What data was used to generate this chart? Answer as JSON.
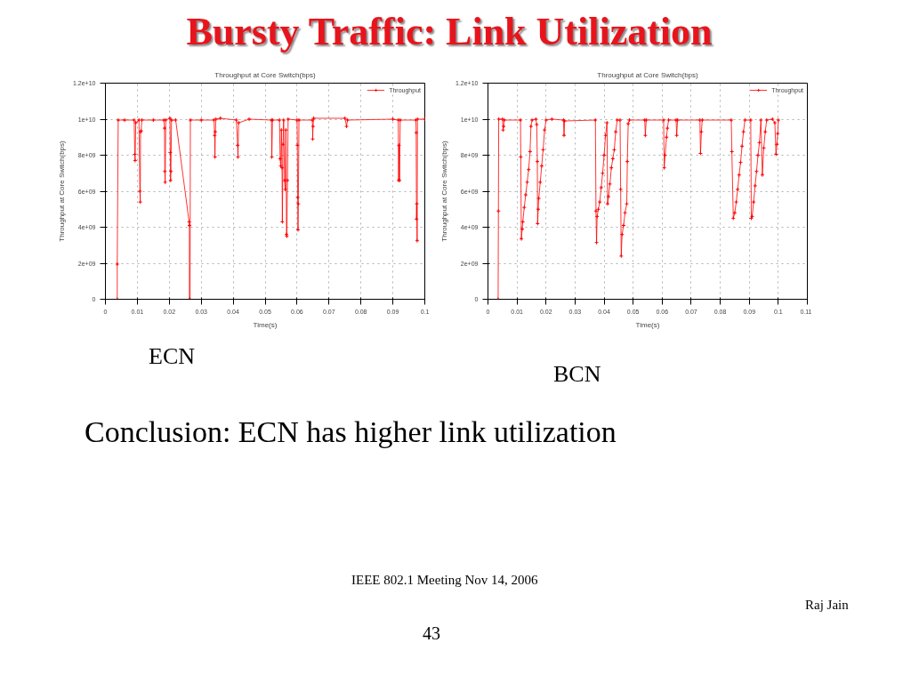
{
  "chart_data": [
    {
      "type": "other",
      "title": "Bursty Traffic: Link Utilization",
      "annotations": [
        "Conclusion: ECN has higher link utilization",
        "IEEE 802.1 Meeting  Nov 14, 2006",
        "Raj Jain",
        "43"
      ]
    },
    {
      "type": "line",
      "title": "Throughput at Core Switch(bps)",
      "xlabel": "Time(s)",
      "ylabel": "Throughput at Core Switch(bps)",
      "annotations": [
        "ECN"
      ],
      "xlim": [
        0,
        0.1
      ],
      "xticks": [
        0,
        0.01,
        0.02,
        0.03,
        0.04,
        0.05,
        0.06,
        0.07,
        0.08,
        0.09,
        0.1
      ],
      "ylim": [
        0,
        12000000000.0
      ],
      "yticks": [
        0,
        {
          "value": 2000000000.0,
          "label": "2e+09"
        },
        {
          "value": 4000000000.0,
          "label": "4e+09"
        },
        {
          "value": 6000000000.0,
          "label": "6e+09"
        },
        {
          "value": 8000000000.0,
          "label": "8e+09"
        },
        {
          "value": 10000000000.0,
          "label": "1e+10"
        },
        {
          "value": 12000000000.0,
          "label": "1.2e+10"
        }
      ],
      "grid": true,
      "legend": "top right",
      "marker": "cross",
      "line_style": "solid",
      "series": [
        {
          "name": "Throughput",
          "color": "#ff0000",
          "x": [
            0.0037,
            0.0037,
            0.004,
            0.006,
            0.009,
            0.0092,
            0.0093,
            0.0095,
            0.0105,
            0.0108,
            0.0109,
            0.011,
            0.0112,
            0.0114,
            0.015,
            0.0183,
            0.0185,
            0.0186,
            0.0187,
            0.0189,
            0.0202,
            0.0203,
            0.0204,
            0.0205,
            0.0207,
            0.022,
            0.0262,
            0.0263,
            0.0263,
            0.0265,
            0.0266,
            0.03,
            0.034,
            0.0342,
            0.0343,
            0.0344,
            0.0346,
            0.036,
            0.041,
            0.0414,
            0.0415,
            0.0417,
            0.045,
            0.052,
            0.0521,
            0.0523,
            0.0545,
            0.0547,
            0.0549,
            0.0551,
            0.0553,
            0.0554,
            0.0556,
            0.0558,
            0.0561,
            0.0563,
            0.0565,
            0.0567,
            0.0568,
            0.057,
            0.0572,
            0.06,
            0.0601,
            0.0602,
            0.0603,
            0.0604,
            0.0606,
            0.0648,
            0.0649,
            0.065,
            0.0652,
            0.075,
            0.0755,
            0.0758,
            0.09,
            0.0917,
            0.0918,
            0.0919,
            0.0921,
            0.0923,
            0.0972,
            0.0973,
            0.0974,
            0.0975,
            0.0976,
            0.0977,
            0.1
          ],
          "values": [
            0,
            1950000000.0,
            9950000000.0,
            9950000000.0,
            9950000000.0,
            8050000000.0,
            7700000000.0,
            9800000000.0,
            9950000000.0,
            6000000000.0,
            5400000000.0,
            9300000000.0,
            9350000000.0,
            9950000000.0,
            9950000000.0,
            9950000000.0,
            9500000000.0,
            7100000000.0,
            6500000000.0,
            9950000000.0,
            10050000000.0,
            8150000000.0,
            6600000000.0,
            7100000000.0,
            9950000000.0,
            9950000000.0,
            4300000000.0,
            4100000000.0,
            0,
            0,
            9950000000.0,
            9950000000.0,
            9950000000.0,
            9100000000.0,
            7900000000.0,
            9300000000.0,
            10000000000.0,
            10050000000.0,
            9950000000.0,
            8550000000.0,
            7900000000.0,
            9800000000.0,
            10000000000.0,
            9950000000.0,
            7900000000.0,
            9950000000.0,
            9950000000.0,
            7800000000.0,
            7400000000.0,
            9400000000.0,
            7300000000.0,
            4300000000.0,
            8600000000.0,
            9950000000.0,
            6600000000.0,
            6100000000.0,
            9400000000.0,
            3600000000.0,
            3500000000.0,
            6600000000.0,
            10000000000.0,
            9950000000.0,
            8550000000.0,
            5650000000.0,
            3850000000.0,
            5300000000.0,
            9950000000.0,
            9950000000.0,
            8900000000.0,
            9600000000.0,
            10050000000.0,
            10050000000.0,
            9600000000.0,
            9950000000.0,
            10000000000.0,
            9950000000.0,
            6600000000.0,
            8550000000.0,
            6600000000.0,
            9950000000.0,
            9950000000.0,
            9250000000.0,
            4450000000.0,
            5300000000.0,
            3250000000.0,
            10000000000.0,
            10000000000.0
          ]
        }
      ]
    },
    {
      "type": "line",
      "title": "Throughput at Core Switch(bps)",
      "xlabel": "Time(s)",
      "ylabel": "Throughput at Core Switch(bps)",
      "annotations": [
        "BCN"
      ],
      "xlim": [
        0,
        0.11
      ],
      "xticks": [
        0,
        0.01,
        0.02,
        0.03,
        0.04,
        0.05,
        0.06,
        0.07,
        0.08,
        0.09,
        0.1,
        0.11
      ],
      "ylim": [
        0,
        12000000000.0
      ],
      "yticks": [
        0,
        {
          "value": 2000000000.0,
          "label": "2e+09"
        },
        {
          "value": 4000000000.0,
          "label": "4e+09"
        },
        {
          "value": 6000000000.0,
          "label": "6e+09"
        },
        {
          "value": 8000000000.0,
          "label": "8e+09"
        },
        {
          "value": 10000000000.0,
          "label": "1e+10"
        },
        {
          "value": 12000000000.0,
          "label": "1.2e+10"
        }
      ],
      "grid": true,
      "legend": "top right",
      "marker": "cross",
      "line_style": "solid",
      "series": [
        {
          "name": "Throughput",
          "color": "#ff0000",
          "x": [
            0.0035,
            0.0036,
            0.0037,
            0.005,
            0.0052,
            0.0054,
            0.0056,
            0.0112,
            0.0113,
            0.0115,
            0.0118,
            0.012,
            0.0125,
            0.013,
            0.0135,
            0.014,
            0.0145,
            0.0148,
            0.0152,
            0.0165,
            0.0168,
            0.017,
            0.0171,
            0.0173,
            0.0175,
            0.018,
            0.0185,
            0.019,
            0.0195,
            0.02,
            0.022,
            0.026,
            0.0262,
            0.0264,
            0.037,
            0.0372,
            0.0374,
            0.0376,
            0.038,
            0.0385,
            0.039,
            0.0395,
            0.04,
            0.0405,
            0.041,
            0.0412,
            0.0415,
            0.042,
            0.0425,
            0.043,
            0.0435,
            0.044,
            0.0445,
            0.0455,
            0.0457,
            0.0459,
            0.0462,
            0.0467,
            0.0472,
            0.0478,
            0.048,
            0.0483,
            0.0487,
            0.054,
            0.0542,
            0.0545,
            0.0605,
            0.0607,
            0.061,
            0.0615,
            0.0618,
            0.0622,
            0.0648,
            0.065,
            0.0653,
            0.073,
            0.0732,
            0.0735,
            0.0738,
            0.0838,
            0.084,
            0.0845,
            0.085,
            0.0855,
            0.086,
            0.0865,
            0.087,
            0.0875,
            0.088,
            0.0885,
            0.0905,
            0.0907,
            0.091,
            0.0915,
            0.092,
            0.0925,
            0.093,
            0.0935,
            0.094,
            0.0945,
            0.095,
            0.0955,
            0.096,
            0.098,
            0.0988,
            0.0992,
            0.0995,
            0.0998,
            0.1
          ],
          "values": [
            0,
            4900000000.0,
            10000000000.0,
            10000000000.0,
            9400000000.0,
            9600000000.0,
            9950000000.0,
            9950000000.0,
            7900000000.0,
            3350000000.0,
            3900000000.0,
            4300000000.0,
            5100000000.0,
            5800000000.0,
            6500000000.0,
            7200000000.0,
            8200000000.0,
            9600000000.0,
            9950000000.0,
            10000000000.0,
            9700000000.0,
            7650000000.0,
            4200000000.0,
            5000000000.0,
            5600000000.0,
            6500000000.0,
            7400000000.0,
            8300000000.0,
            9400000000.0,
            9950000000.0,
            10000000000.0,
            9950000000.0,
            9100000000.0,
            9900000000.0,
            9950000000.0,
            4900000000.0,
            3150000000.0,
            4600000000.0,
            5000000000.0,
            5400000000.0,
            6200000000.0,
            7000000000.0,
            8000000000.0,
            9100000000.0,
            9800000000.0,
            5300000000.0,
            5700000000.0,
            6400000000.0,
            7300000000.0,
            7800000000.0,
            8300000000.0,
            9300000000.0,
            9950000000.0,
            9950000000.0,
            6100000000.0,
            2400000000.0,
            3600000000.0,
            4100000000.0,
            4800000000.0,
            5300000000.0,
            7650000000.0,
            9750000000.0,
            9950000000.0,
            9950000000.0,
            9100000000.0,
            9950000000.0,
            9950000000.0,
            7300000000.0,
            8000000000.0,
            9000000000.0,
            9500000000.0,
            9950000000.0,
            9950000000.0,
            9100000000.0,
            9950000000.0,
            9950000000.0,
            8100000000.0,
            9300000000.0,
            9950000000.0,
            9950000000.0,
            8200000000.0,
            4500000000.0,
            4800000000.0,
            5400000000.0,
            6100000000.0,
            6900000000.0,
            7600000000.0,
            8500000000.0,
            9300000000.0,
            9950000000.0,
            9950000000.0,
            4500000000.0,
            4600000000.0,
            5400000000.0,
            6300000000.0,
            7100000000.0,
            8000000000.0,
            8700000000.0,
            9950000000.0,
            6900000000.0,
            8400000000.0,
            9300000000.0,
            9950000000.0,
            10000000000.0,
            9800000000.0,
            8050000000.0,
            8600000000.0,
            9200000000.0,
            9950000000.0
          ]
        }
      ]
    }
  ]
}
